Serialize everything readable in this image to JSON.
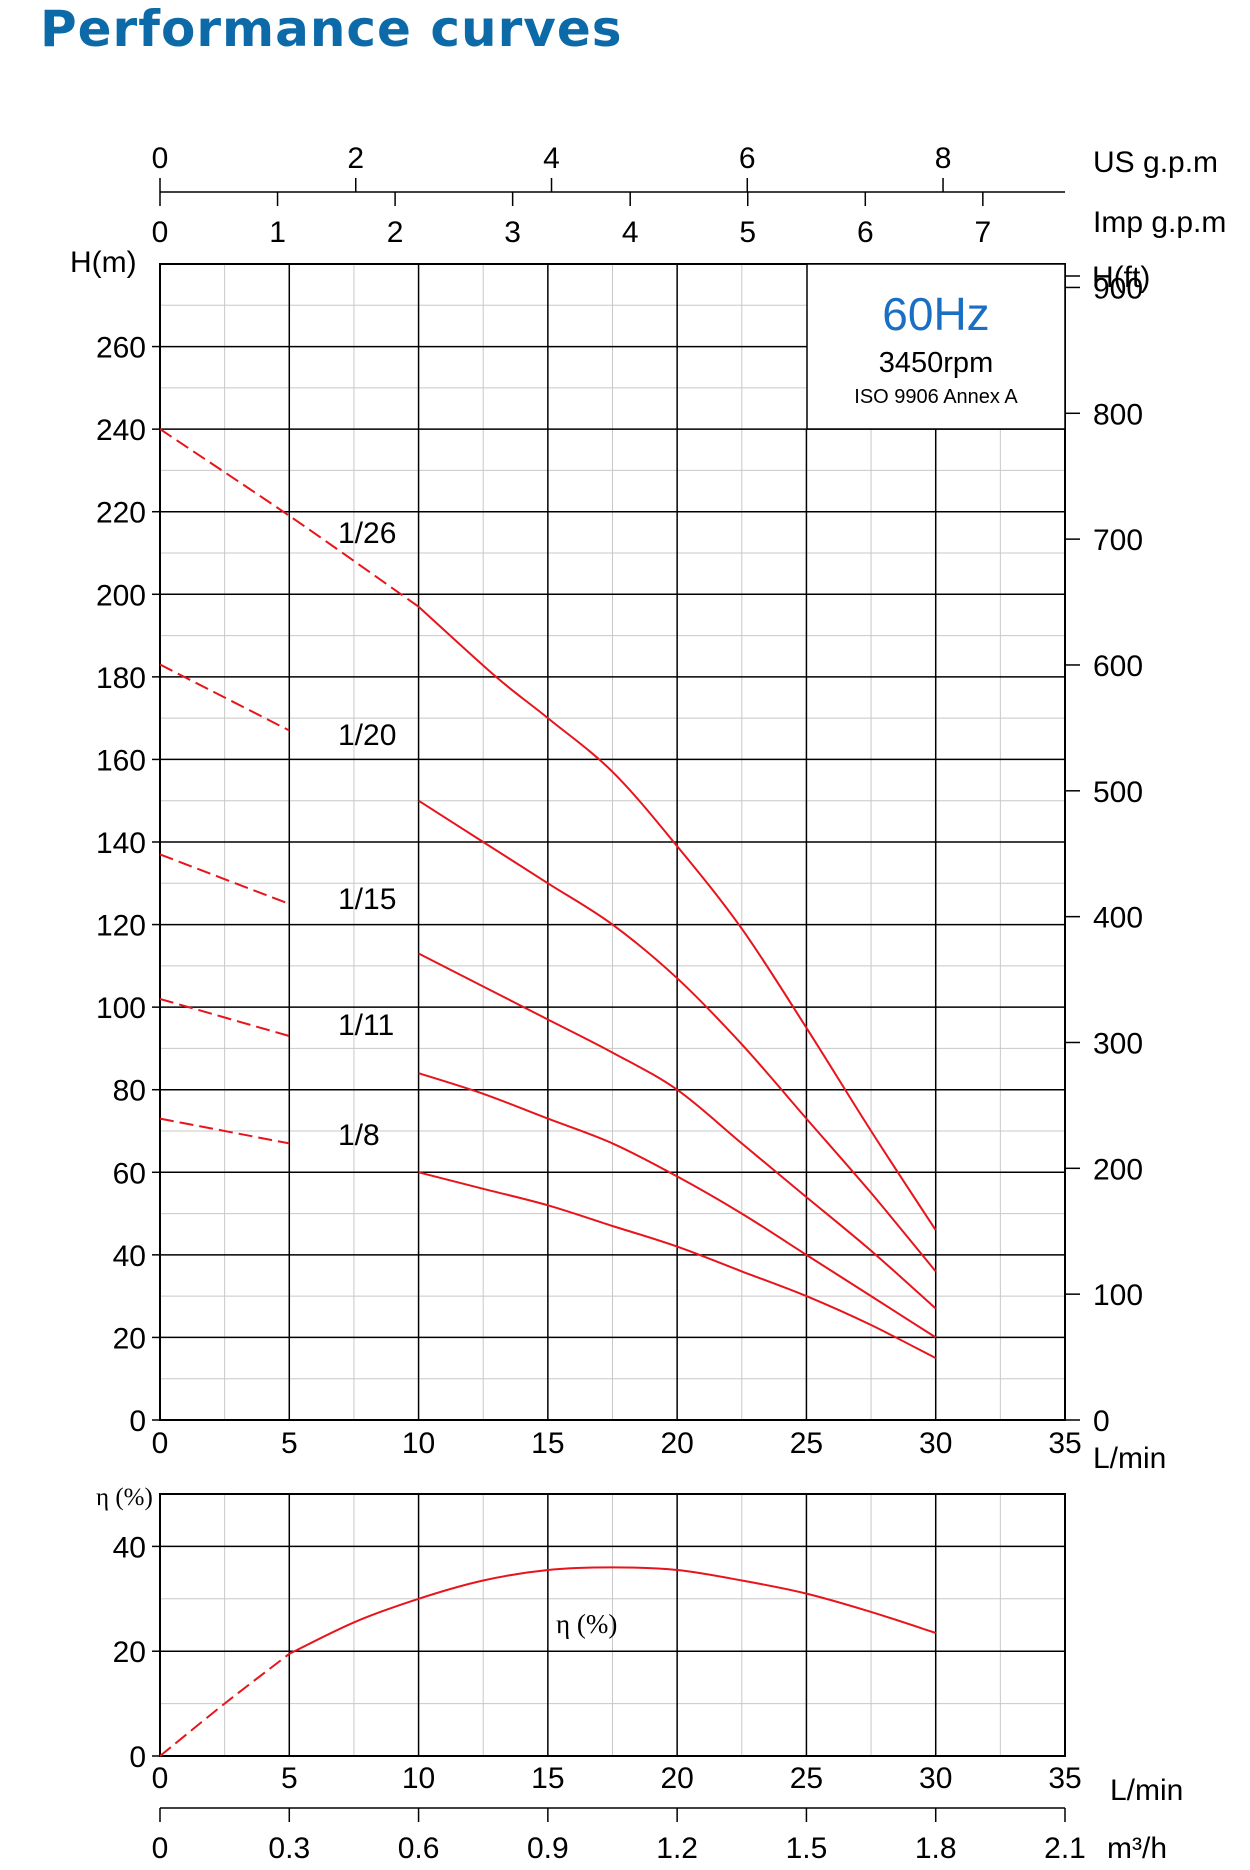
{
  "page": {
    "title": "Performance curves"
  },
  "legend_box": {
    "frequency": "60Hz",
    "speed": "3450rpm",
    "standard": "ISO 9906 Annex A"
  },
  "colors": {
    "title": "#0d6aa8",
    "frequency": "#1a6fc4",
    "curve": "#e8141c",
    "grid_major": "#000000",
    "grid_minor": "#c8c8c8"
  },
  "axes": {
    "us_gpm": {
      "label": "US g.p.m",
      "ticks": [
        "0",
        "2",
        "4",
        "6",
        "8"
      ]
    },
    "imp_gpm": {
      "label": "Imp g.p.m",
      "ticks": [
        "0",
        "1",
        "2",
        "3",
        "4",
        "5",
        "6",
        "7"
      ]
    },
    "h_m": {
      "label": "H(m)",
      "ticks": [
        "0",
        "20",
        "40",
        "60",
        "80",
        "100",
        "120",
        "140",
        "160",
        "180",
        "200",
        "220",
        "240",
        "260"
      ]
    },
    "h_ft": {
      "label": "H(ft)",
      "ticks": [
        "0",
        "100",
        "200",
        "300",
        "400",
        "500",
        "600",
        "700",
        "800",
        "900"
      ]
    },
    "flow_lmin": {
      "label": "L/min",
      "ticks": [
        "0",
        "5",
        "10",
        "15",
        "20",
        "25",
        "30",
        "35"
      ]
    },
    "eta": {
      "label": "η (%)",
      "ticks": [
        "0",
        "20",
        "40"
      ]
    },
    "flow_lmin_bottom": {
      "label": "L/min",
      "ticks": [
        "0",
        "5",
        "10",
        "15",
        "20",
        "25",
        "30",
        "35"
      ]
    },
    "flow_m3h": {
      "label": "m³/h",
      "ticks": [
        "0",
        "0.3",
        "0.6",
        "0.9",
        "1.2",
        "1.5",
        "1.8",
        "2.1"
      ]
    }
  },
  "chart_data": [
    {
      "type": "line",
      "xlabel": "L/min",
      "ylabel": "H(m)",
      "xlim": [
        0,
        35
      ],
      "ylim": [
        0,
        280
      ],
      "grid": true,
      "series": [
        {
          "name": "1/26",
          "x": [
            0,
            5,
            10,
            13,
            15,
            17.5,
            20,
            22.5,
            25,
            27.5,
            30
          ],
          "y": [
            240,
            219,
            197,
            180,
            170,
            157,
            139,
            119,
            95,
            70,
            46
          ],
          "dashed_until": 10
        },
        {
          "name": "1/20",
          "x": [
            0,
            5,
            10,
            12.5,
            15,
            17.5,
            20,
            22.5,
            25,
            27.5,
            30
          ],
          "y": [
            183,
            167,
            150,
            140,
            130,
            120,
            107,
            91,
            73,
            55,
            36
          ],
          "dashed_until": 7.5
        },
        {
          "name": "1/15",
          "x": [
            0,
            5,
            10,
            12.5,
            15,
            17.5,
            20,
            22.5,
            25,
            27.5,
            30
          ],
          "y": [
            137,
            125,
            113,
            105,
            97,
            89,
            80,
            67,
            54,
            41,
            27
          ],
          "dashed_until": 7.5
        },
        {
          "name": "1/11",
          "x": [
            0,
            5,
            10,
            12.5,
            15,
            17.5,
            20,
            22.5,
            25,
            27.5,
            30
          ],
          "y": [
            102,
            93,
            84,
            79,
            73,
            67,
            59,
            50,
            40,
            30,
            20
          ],
          "dashed_until": 7.5
        },
        {
          "name": "1/8",
          "x": [
            0,
            5,
            10,
            12.5,
            15,
            17.5,
            20,
            22.5,
            25,
            27.5,
            30
          ],
          "y": [
            73,
            67,
            60,
            56,
            52,
            47,
            42,
            36,
            30,
            23,
            15
          ],
          "dashed_until": 7.5
        }
      ]
    },
    {
      "type": "line",
      "xlabel": "L/min",
      "ylabel": "η (%)",
      "xlim": [
        0,
        35
      ],
      "ylim": [
        0,
        50
      ],
      "grid": true,
      "series": [
        {
          "name": "η (%)",
          "x": [
            0,
            2.5,
            5,
            7.5,
            10,
            12.5,
            15,
            17.5,
            20,
            22.5,
            25,
            27.5,
            30
          ],
          "y": [
            0,
            10,
            19.5,
            25.5,
            30,
            33.5,
            35.5,
            36,
            35.5,
            33.5,
            31,
            27.5,
            23.5
          ],
          "dashed_until": 5
        }
      ]
    }
  ]
}
